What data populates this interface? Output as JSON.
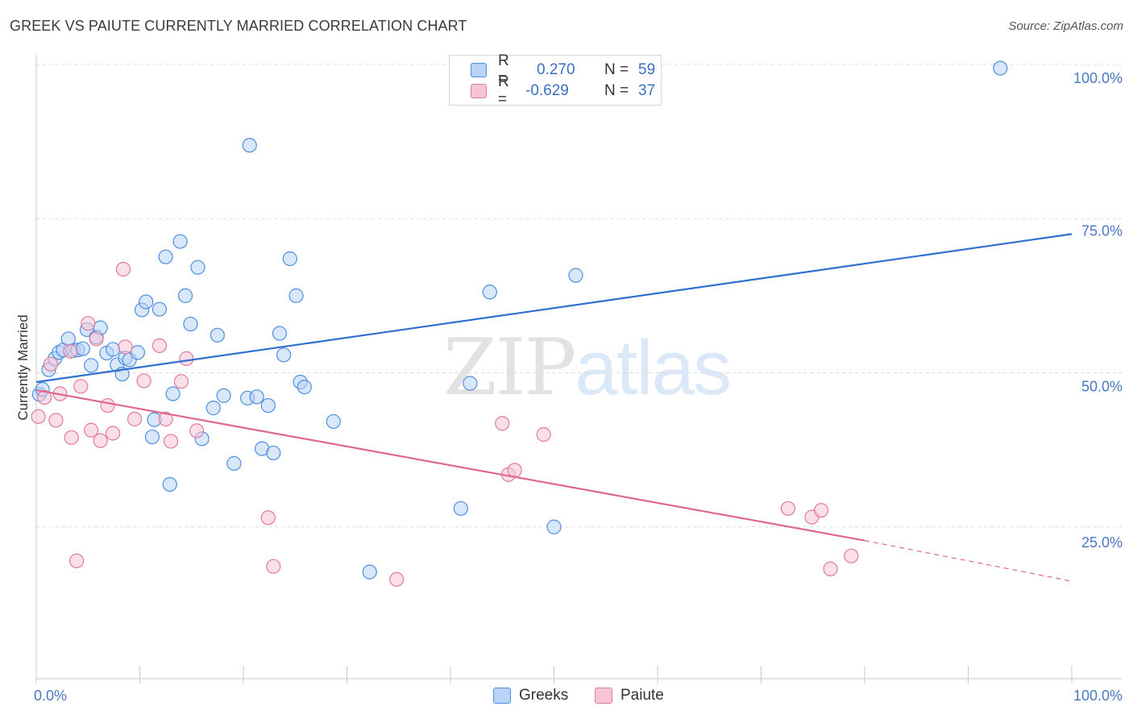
{
  "title": "GREEK VS PAIUTE CURRENTLY MARRIED CORRELATION CHART",
  "source": "Source: ZipAtlas.com",
  "watermark": {
    "zip": "ZIP",
    "atlas": "atlas"
  },
  "legend": {
    "rows": [
      {
        "r_label": "R =",
        "r_value": "0.270",
        "n_label": "N =",
        "n_value": "59"
      },
      {
        "r_label": "R =",
        "r_value": "-0.629",
        "n_label": "N =",
        "n_value": "37"
      }
    ]
  },
  "chart_data": {
    "type": "scatter",
    "title": "GREEK VS PAIUTE CURRENTLY MARRIED CORRELATION CHART",
    "xlabel": "",
    "ylabel": "Currently Married",
    "xlim": [
      0,
      100
    ],
    "ylim": [
      0,
      100
    ],
    "x_tick_labels": [
      "0.0%",
      "100.0%"
    ],
    "y_tick_labels": [
      "25.0%",
      "50.0%",
      "75.0%",
      "100.0%"
    ],
    "y_ticks": [
      25,
      50,
      75,
      100
    ],
    "grid": "horizontal dashed",
    "legend_position": "bottom",
    "series": [
      {
        "name": "Greeks",
        "color": "#4f8fe0",
        "fill": "#b8d3f5",
        "r": "0.270",
        "n": "59",
        "trend": [
          [
            0,
            48.5
          ],
          [
            100,
            72.5
          ]
        ],
        "points": [
          [
            0.3,
            46.5
          ],
          [
            0.6,
            47.3
          ],
          [
            1.2,
            50.5
          ],
          [
            1.8,
            52.3
          ],
          [
            2.2,
            53.3
          ],
          [
            2.6,
            53.7
          ],
          [
            3.1,
            55.5
          ],
          [
            3.6,
            53.6
          ],
          [
            4.0,
            53.7
          ],
          [
            4.5,
            53.9
          ],
          [
            4.9,
            57.0
          ],
          [
            5.3,
            51.2
          ],
          [
            5.8,
            55.8
          ],
          [
            6.2,
            57.3
          ],
          [
            6.8,
            53.2
          ],
          [
            7.4,
            53.8
          ],
          [
            7.8,
            51.3
          ],
          [
            8.3,
            49.8
          ],
          [
            8.6,
            52.4
          ],
          [
            9.0,
            52.1
          ],
          [
            9.8,
            53.3
          ],
          [
            10.2,
            60.2
          ],
          [
            10.6,
            61.5
          ],
          [
            11.2,
            39.6
          ],
          [
            11.4,
            42.4
          ],
          [
            11.9,
            60.3
          ],
          [
            12.5,
            68.8
          ],
          [
            12.9,
            31.9
          ],
          [
            13.2,
            46.6
          ],
          [
            13.9,
            71.3
          ],
          [
            14.4,
            62.5
          ],
          [
            14.9,
            57.9
          ],
          [
            15.6,
            67.1
          ],
          [
            16.0,
            39.3
          ],
          [
            17.1,
            44.3
          ],
          [
            17.5,
            56.1
          ],
          [
            18.1,
            46.3
          ],
          [
            19.1,
            35.3
          ],
          [
            20.6,
            86.9
          ],
          [
            20.4,
            45.9
          ],
          [
            21.3,
            46.1
          ],
          [
            21.8,
            37.7
          ],
          [
            22.4,
            44.7
          ],
          [
            22.9,
            37.0
          ],
          [
            23.5,
            56.4
          ],
          [
            23.9,
            52.9
          ],
          [
            24.5,
            68.5
          ],
          [
            25.1,
            62.5
          ],
          [
            25.5,
            48.5
          ],
          [
            25.9,
            47.7
          ],
          [
            28.7,
            42.1
          ],
          [
            32.2,
            17.7
          ],
          [
            41.0,
            28.0
          ],
          [
            41.9,
            48.3
          ],
          [
            43.8,
            63.1
          ],
          [
            50.0,
            25.0
          ],
          [
            52.1,
            65.8
          ],
          [
            56.8,
            99.9
          ],
          [
            93.1,
            99.4
          ]
        ]
      },
      {
        "name": "Paiute",
        "color": "#e07aa0",
        "fill": "#f7c4d5",
        "r": "-0.629",
        "n": "37",
        "trend": [
          [
            0,
            47.2
          ],
          [
            80,
            22.8
          ]
        ],
        "trend_dashed": [
          [
            80,
            22.8
          ],
          [
            100,
            16.2
          ]
        ],
        "points": [
          [
            0.2,
            42.9
          ],
          [
            0.8,
            46.0
          ],
          [
            1.4,
            51.4
          ],
          [
            1.9,
            42.3
          ],
          [
            2.3,
            46.6
          ],
          [
            3.3,
            53.5
          ],
          [
            3.4,
            39.5
          ],
          [
            3.9,
            19.5
          ],
          [
            4.3,
            47.8
          ],
          [
            5.0,
            58.0
          ],
          [
            5.3,
            40.7
          ],
          [
            5.8,
            55.5
          ],
          [
            6.2,
            39.0
          ],
          [
            6.9,
            44.7
          ],
          [
            7.4,
            40.2
          ],
          [
            8.4,
            66.8
          ],
          [
            8.6,
            54.2
          ],
          [
            9.5,
            42.5
          ],
          [
            10.4,
            48.7
          ],
          [
            11.9,
            54.4
          ],
          [
            12.5,
            42.5
          ],
          [
            13.0,
            38.9
          ],
          [
            14.0,
            48.6
          ],
          [
            14.5,
            52.3
          ],
          [
            15.5,
            40.6
          ],
          [
            22.4,
            26.5
          ],
          [
            22.9,
            18.6
          ],
          [
            34.8,
            16.5
          ],
          [
            45.0,
            41.8
          ],
          [
            45.6,
            33.5
          ],
          [
            46.2,
            34.2
          ],
          [
            49.0,
            40.0
          ],
          [
            72.6,
            28.0
          ],
          [
            74.9,
            26.6
          ],
          [
            75.8,
            27.7
          ],
          [
            76.7,
            18.2
          ],
          [
            78.7,
            20.3
          ]
        ]
      }
    ]
  }
}
